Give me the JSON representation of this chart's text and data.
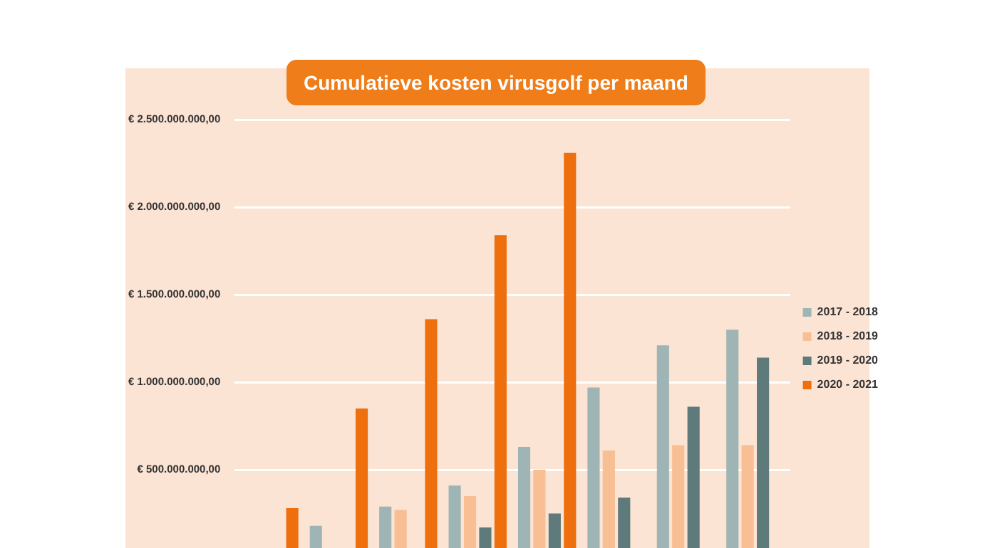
{
  "chart_data": {
    "type": "bar",
    "title": "Cumulatieve kosten virusgolf per maand",
    "categories": [
      null,
      null,
      null,
      null,
      null,
      null,
      null,
      null
    ],
    "series": [
      {
        "name": "2017 - 2018",
        "color": "#9fb5b5",
        "values": [
          null,
          180000000,
          290000000,
          410000000,
          630000000,
          970000000,
          1210000000,
          1300000000
        ]
      },
      {
        "name": "2018 - 2019",
        "color": "#f7bf93",
        "values": [
          null,
          null,
          270000000,
          350000000,
          500000000,
          610000000,
          640000000,
          640000000
        ]
      },
      {
        "name": "2019 - 2020",
        "color": "#5f7a7a",
        "values": [
          null,
          null,
          null,
          170000000,
          250000000,
          340000000,
          860000000,
          1140000000
        ]
      },
      {
        "name": "2020 - 2021",
        "color": "#ee6f0e",
        "values": [
          280000000,
          850000000,
          1360000000,
          1840000000,
          2310000000,
          null,
          null,
          null
        ]
      }
    ],
    "ylim": [
      0,
      2500000000
    ],
    "yticks": [
      {
        "value": 500000000,
        "label": "€ 500.000.000,00"
      },
      {
        "value": 1000000000,
        "label": "€ 1.000.000.000,00"
      },
      {
        "value": 1500000000,
        "label": "€ 1.500.000.000,00"
      },
      {
        "value": 2000000000,
        "label": "€ 2.000.000.000,00"
      },
      {
        "value": 2500000000,
        "label": "€ 2.500.000.000,00"
      }
    ],
    "grid": "y",
    "legend": "right",
    "tick_labels": "y"
  }
}
